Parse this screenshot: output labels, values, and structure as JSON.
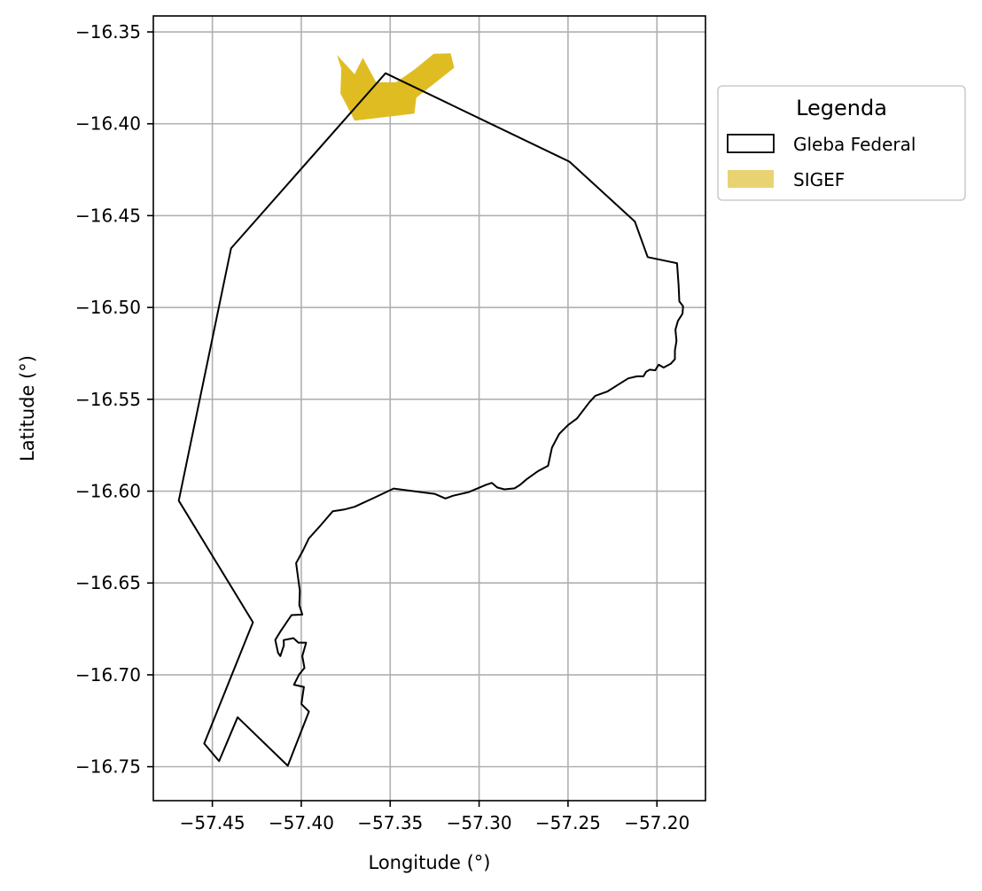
{
  "chart_data": {
    "type": "map",
    "xlabel": "Longitude (°)",
    "ylabel": "Latitude (°)",
    "xlim": [
      -57.4832,
      -57.1727
    ],
    "ylim": [
      -16.7685,
      -16.3413
    ],
    "grid": true,
    "x_ticks": [
      -57.45,
      -57.4,
      -57.35,
      -57.3,
      -57.25,
      -57.2
    ],
    "x_tick_labels": [
      "−57.45",
      "−57.40",
      "−57.35",
      "−57.30",
      "−57.25",
      "−57.20"
    ],
    "y_ticks": [
      -16.35,
      -16.4,
      -16.45,
      -16.5,
      -16.55,
      -16.6,
      -16.65,
      -16.7,
      -16.75
    ],
    "y_tick_labels": [
      "−16.35",
      "−16.40",
      "−16.45",
      "−16.50",
      "−16.55",
      "−16.60",
      "−16.65",
      "−16.70",
      "−16.75"
    ],
    "legend": {
      "title": "Legenda",
      "position": "outside-top-right",
      "entries": [
        {
          "label": "Gleba Federal",
          "style": "outline",
          "color": "#000000"
        },
        {
          "label": "SIGEF",
          "style": "fill",
          "color": "#E8D373"
        }
      ]
    },
    "layers": [
      {
        "name": "Gleba Federal",
        "style": "outline",
        "stroke": "#000000",
        "coordinates": [
          [
            -57.3526,
            -16.3725
          ],
          [
            -57.2492,
            -16.4206
          ],
          [
            -57.2124,
            -16.4532
          ],
          [
            -57.2052,
            -16.4726
          ],
          [
            -57.1887,
            -16.4759
          ],
          [
            -57.1878,
            -16.488
          ],
          [
            -57.1874,
            -16.4967
          ],
          [
            -57.1853,
            -16.4993
          ],
          [
            -57.1856,
            -16.5034
          ],
          [
            -57.1882,
            -16.5073
          ],
          [
            -57.1896,
            -16.5121
          ],
          [
            -57.189,
            -16.5182
          ],
          [
            -57.1899,
            -16.5234
          ],
          [
            -57.1899,
            -16.5282
          ],
          [
            -57.1923,
            -16.5307
          ],
          [
            -57.1962,
            -16.5327
          ],
          [
            -57.199,
            -16.5312
          ],
          [
            -57.201,
            -16.5342
          ],
          [
            -57.204,
            -16.5339
          ],
          [
            -57.2061,
            -16.535
          ],
          [
            -57.2076,
            -16.5375
          ],
          [
            -57.2112,
            -16.5375
          ],
          [
            -57.2161,
            -16.5386
          ],
          [
            -57.2226,
            -16.5425
          ],
          [
            -57.2279,
            -16.5458
          ],
          [
            -57.2347,
            -16.5481
          ],
          [
            -57.238,
            -16.5516
          ],
          [
            -57.245,
            -16.5605
          ],
          [
            -57.25,
            -16.564
          ],
          [
            -57.255,
            -16.5689
          ],
          [
            -57.259,
            -16.5763
          ],
          [
            -57.2612,
            -16.5862
          ],
          [
            -57.2667,
            -16.589
          ],
          [
            -57.2731,
            -16.5934
          ],
          [
            -57.277,
            -16.5966
          ],
          [
            -57.2801,
            -16.5985
          ],
          [
            -57.2858,
            -16.599
          ],
          [
            -57.2898,
            -16.598
          ],
          [
            -57.2928,
            -16.5955
          ],
          [
            -57.296,
            -16.5965
          ],
          [
            -57.3009,
            -16.5985
          ],
          [
            -57.3058,
            -16.6005
          ],
          [
            -57.3146,
            -16.6025
          ],
          [
            -57.319,
            -16.604
          ],
          [
            -57.325,
            -16.6015
          ],
          [
            -57.3371,
            -16.6
          ],
          [
            -57.3481,
            -16.5986
          ],
          [
            -57.3594,
            -16.6038
          ],
          [
            -57.37,
            -16.6085
          ],
          [
            -57.3759,
            -16.61
          ],
          [
            -57.3823,
            -16.611
          ],
          [
            -57.389,
            -16.6185
          ],
          [
            -57.3958,
            -16.6258
          ],
          [
            -57.399,
            -16.6323
          ],
          [
            -57.4029,
            -16.6392
          ],
          [
            -57.4008,
            -16.6542
          ],
          [
            -57.4011,
            -16.662
          ],
          [
            -57.3994,
            -16.6672
          ],
          [
            -57.4055,
            -16.6675
          ],
          [
            -57.4115,
            -16.676
          ],
          [
            -57.4146,
            -16.681
          ],
          [
            -57.4131,
            -16.688
          ],
          [
            -57.4118,
            -16.6898
          ],
          [
            -57.4098,
            -16.684
          ],
          [
            -57.4099,
            -16.6811
          ],
          [
            -57.4044,
            -16.68
          ],
          [
            -57.4016,
            -16.6825
          ],
          [
            -57.3973,
            -16.6825
          ],
          [
            -57.3994,
            -16.6898
          ],
          [
            -57.3982,
            -16.6962
          ],
          [
            -57.4013,
            -16.7
          ],
          [
            -57.4041,
            -16.7054
          ],
          [
            -57.3985,
            -16.7066
          ],
          [
            -57.399,
            -16.7098
          ],
          [
            -57.3999,
            -16.7159
          ],
          [
            -57.3957,
            -16.72
          ],
          [
            -57.4076,
            -16.7495
          ],
          [
            -57.4358,
            -16.7231
          ],
          [
            -57.4462,
            -16.747
          ],
          [
            -57.4546,
            -16.7374
          ],
          [
            -57.4272,
            -16.6714
          ],
          [
            -57.4689,
            -16.6052
          ],
          [
            -57.4395,
            -16.4678
          ],
          [
            -57.3526,
            -16.3725
          ]
        ]
      },
      {
        "name": "SIGEF",
        "style": "fill",
        "fill": "#DFBD22",
        "coordinates": [
          [
            -57.38,
            -16.3625
          ],
          [
            -57.37,
            -16.373
          ],
          [
            -57.3654,
            -16.3641
          ],
          [
            -57.3579,
            -16.3774
          ],
          [
            -57.3467,
            -16.3774
          ],
          [
            -57.3365,
            -16.3706
          ],
          [
            -57.3255,
            -16.3619
          ],
          [
            -57.316,
            -16.3617
          ],
          [
            -57.314,
            -16.3695
          ],
          [
            -57.3353,
            -16.3858
          ],
          [
            -57.3364,
            -16.3945
          ],
          [
            -57.37,
            -16.3983
          ],
          [
            -57.378,
            -16.3835
          ],
          [
            -57.3775,
            -16.37
          ],
          [
            -57.38,
            -16.3625
          ]
        ]
      }
    ]
  }
}
